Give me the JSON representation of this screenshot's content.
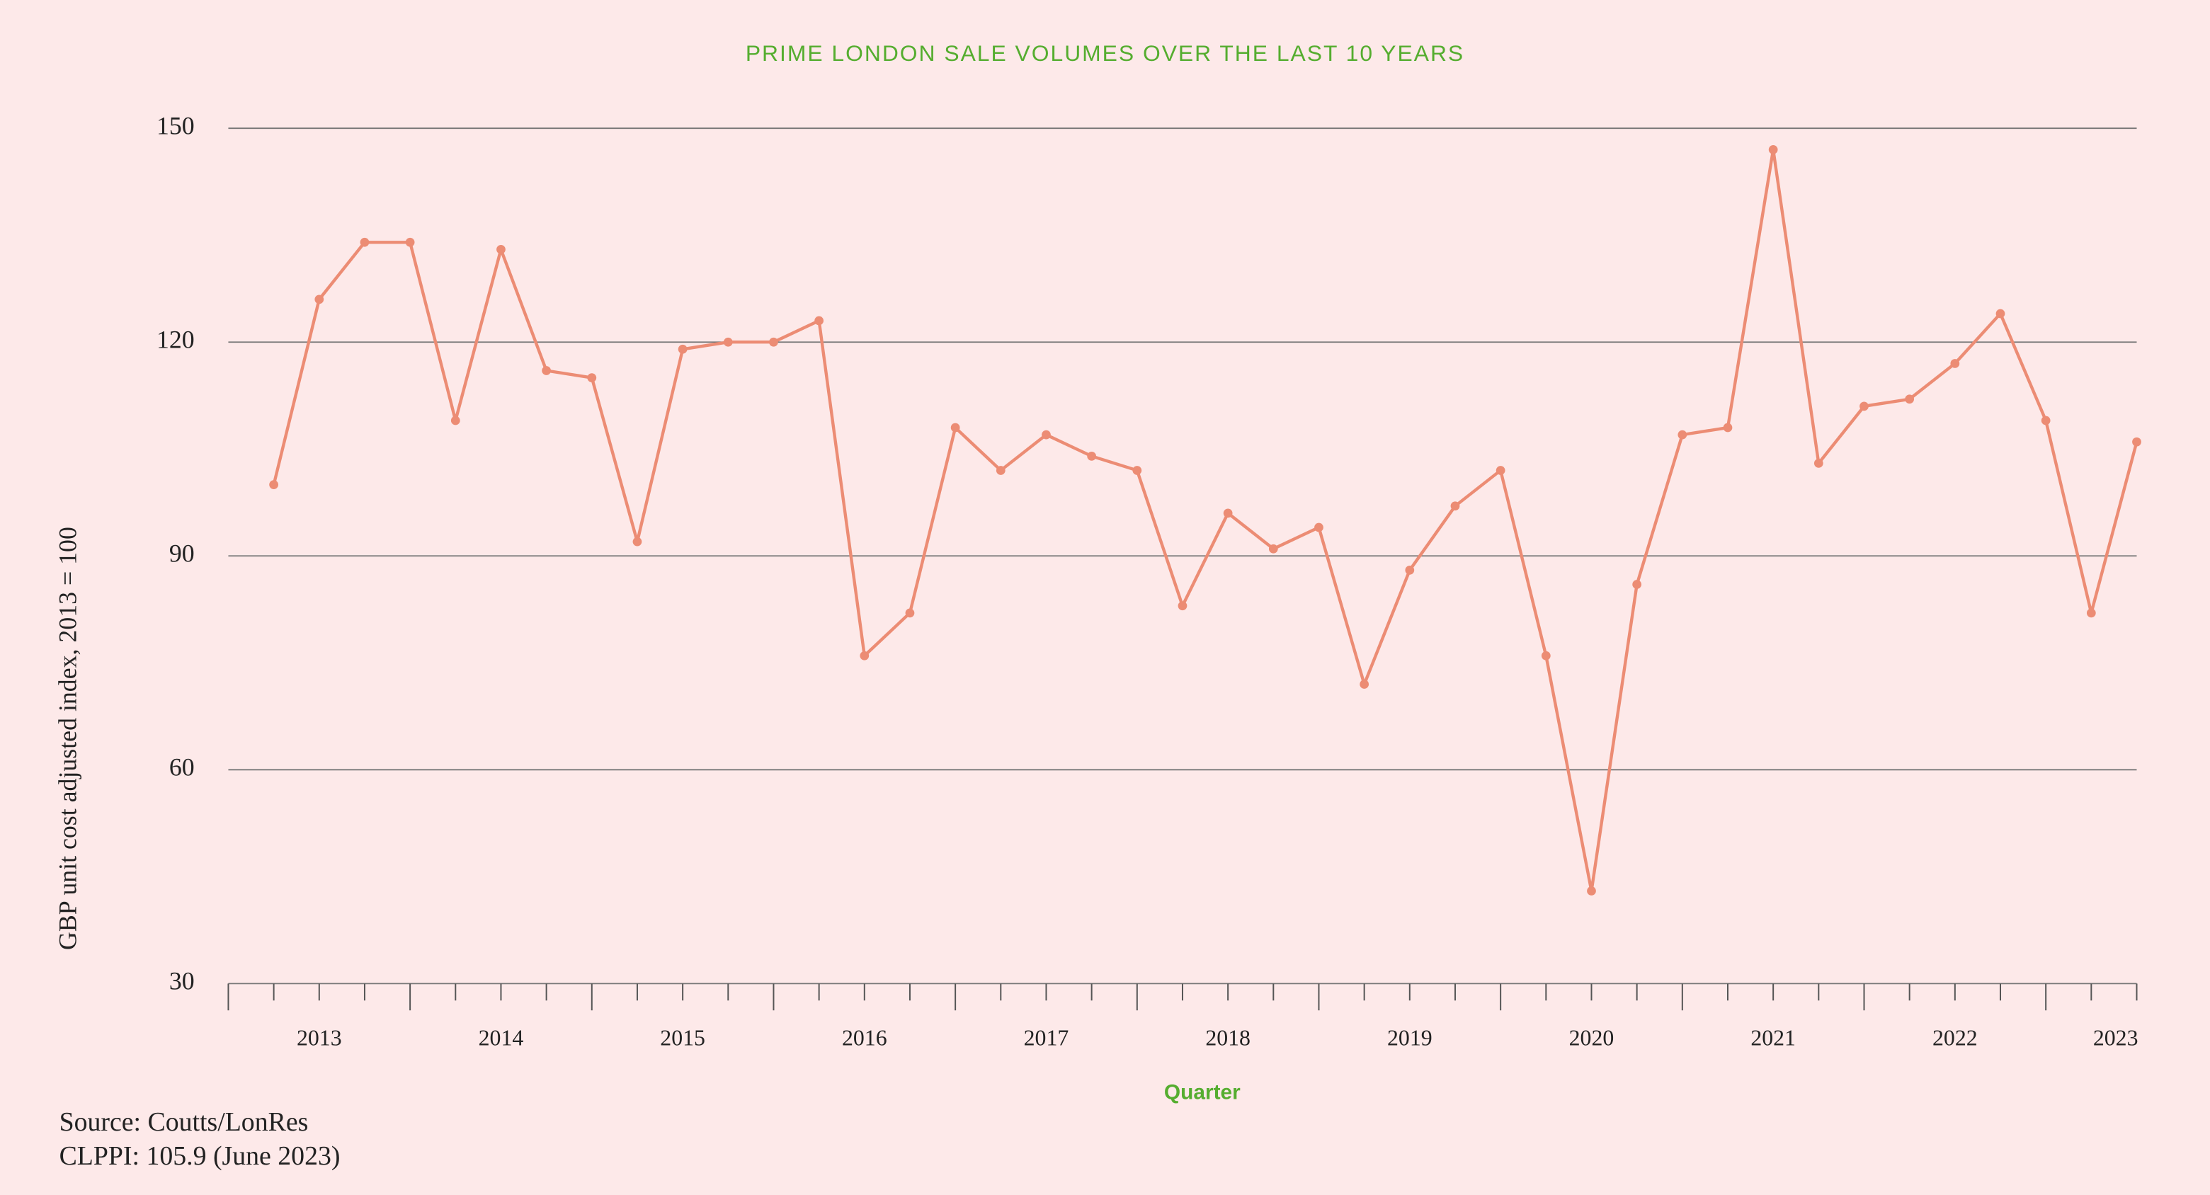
{
  "chart_data": {
    "type": "line",
    "title": "PRIME LONDON SALE VOLUMES OVER THE LAST 10 YEARS",
    "y_label": "GBP unit cost adjusted index, 2013 = 100",
    "x_label": "Quarter",
    "notes": [
      "Source: Coutts/LonRes",
      "CLPPI: 105.9 (June 2023)"
    ],
    "categories": [
      null,
      null,
      null,
      null,
      null,
      null,
      null,
      null,
      null,
      null,
      null,
      null,
      null,
      null,
      null,
      null,
      null,
      null,
      null,
      null,
      null,
      null,
      null,
      null,
      null,
      null,
      null,
      null,
      null,
      null,
      null,
      null,
      null,
      null,
      null,
      null,
      null,
      null,
      null,
      null,
      null,
      null
    ],
    "x_group_labels": [
      "2013",
      "2014",
      "2015",
      "2016",
      "2017",
      "2018",
      "2019",
      "2020",
      "2021",
      "2022",
      "2023"
    ],
    "values": [
      100,
      126,
      134,
      134,
      109,
      133,
      116,
      115,
      92,
      119,
      120,
      120,
      123,
      76,
      82,
      108,
      102,
      107,
      104,
      102,
      83,
      96,
      91,
      94,
      72,
      88,
      97,
      102,
      76,
      43,
      86,
      107,
      108,
      147,
      103,
      111,
      112,
      117,
      124,
      109,
      82,
      106
    ],
    "color": "#ec8c74",
    "ylim": [
      30,
      150
    ],
    "yticks": [
      30,
      60,
      90,
      120,
      150
    ],
    "grid": true
  }
}
